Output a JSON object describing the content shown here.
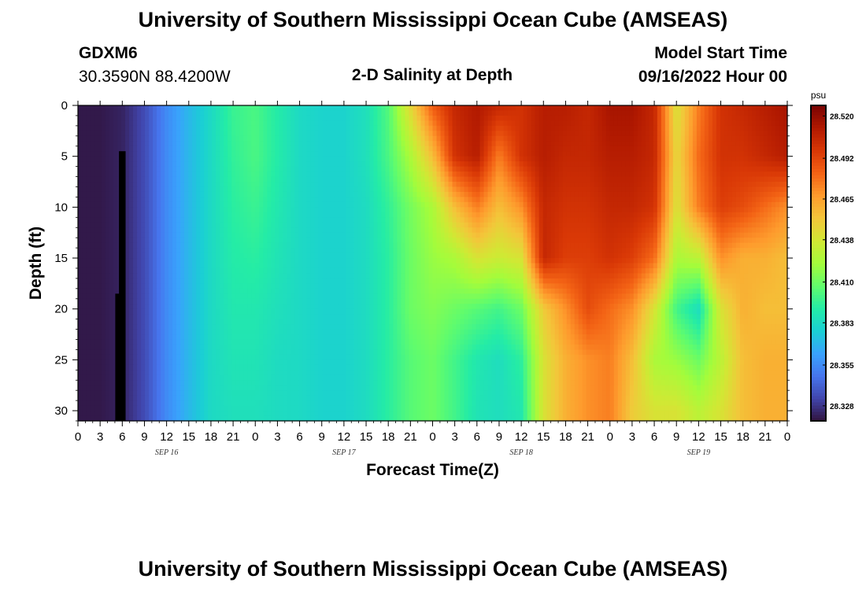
{
  "page": {
    "title": "University of Southern Mississippi Ocean Cube (AMSEAS)",
    "footer_title": "University of Southern Mississippi Ocean Cube (AMSEAS)",
    "station_id": "GDXM6",
    "coordinates": "30.3590N  88.4200W",
    "plot_title": "2-D Salinity at Depth",
    "model_start_label": "Model Start Time",
    "model_start_value": "09/16/2022 Hour 00"
  },
  "chart_data": {
    "type": "heatmap",
    "title": "2-D Salinity at Depth",
    "xlabel": "Forecast Time(Z)",
    "ylabel": "Depth (ft)",
    "x_unit": "hours since 09/16/2022 00Z",
    "xlim": [
      0,
      96
    ],
    "ylim": [
      0,
      31
    ],
    "y_inverted": true,
    "x_ticks": [
      0,
      3,
      6,
      9,
      12,
      15,
      18,
      21,
      24,
      27,
      30,
      33,
      36,
      39,
      42,
      45,
      48,
      51,
      54,
      57,
      60,
      63,
      66,
      69,
      72,
      75,
      78,
      81,
      84,
      87,
      90,
      93,
      96
    ],
    "x_tick_labels": [
      "0",
      "3",
      "6",
      "9",
      "12",
      "15",
      "18",
      "21",
      "0",
      "3",
      "6",
      "9",
      "12",
      "15",
      "18",
      "21",
      "0",
      "3",
      "6",
      "9",
      "12",
      "15",
      "18",
      "21",
      "0",
      "3",
      "6",
      "9",
      "12",
      "15",
      "18",
      "21",
      "0"
    ],
    "date_labels": [
      {
        "x": 12,
        "label": "SEP 16"
      },
      {
        "x": 36,
        "label": "SEP 17"
      },
      {
        "x": 60,
        "label": "SEP 18"
      },
      {
        "x": 84,
        "label": "SEP 19"
      }
    ],
    "y_ticks": [
      0,
      5,
      10,
      15,
      20,
      25,
      30
    ],
    "y_tick_labels": [
      "0",
      "5",
      "10",
      "15",
      "20",
      "25",
      "30"
    ],
    "colorbar": {
      "unit": "psu",
      "range": [
        28.318,
        28.527
      ],
      "tick_values": [
        28.52,
        28.492,
        28.465,
        28.438,
        28.41,
        28.383,
        28.355,
        28.328
      ],
      "tick_labels": [
        "28.520",
        "28.492",
        "28.465",
        "28.438",
        "28.410",
        "28.383",
        "28.355",
        "28.328"
      ],
      "colormap": [
        "#30123b",
        "#4145ab",
        "#4675ed",
        "#39a2fc",
        "#1bcfd4",
        "#24eca6",
        "#61fc6c",
        "#a4fc3b",
        "#d1e834",
        "#f3c63a",
        "#fe9b2d",
        "#f36315",
        "#d93806",
        "#b11901",
        "#7a0402"
      ]
    },
    "x_hours": [
      0,
      3,
      6,
      9,
      12,
      15,
      18,
      21,
      24,
      27,
      30,
      33,
      36,
      39,
      42,
      45,
      48,
      51,
      54,
      57,
      60,
      63,
      66,
      69,
      72,
      75,
      78,
      81,
      84,
      87,
      90,
      93,
      96
    ],
    "depths_ft": [
      0,
      5,
      10,
      15,
      20,
      25,
      30
    ],
    "values": [
      [
        28.32,
        28.32,
        28.323,
        28.335,
        28.355,
        28.37,
        28.383,
        28.398,
        28.402,
        28.392,
        28.383,
        28.38,
        28.38,
        28.386,
        28.404,
        28.445,
        28.485,
        28.505,
        28.512,
        28.505,
        28.5,
        28.51,
        28.51,
        28.505,
        28.515,
        28.515,
        28.505,
        28.44,
        28.475,
        28.5,
        28.505,
        28.51,
        28.515
      ],
      [
        28.32,
        28.32,
        28.323,
        28.335,
        28.355,
        28.37,
        28.383,
        28.396,
        28.402,
        28.392,
        28.383,
        28.38,
        28.38,
        28.386,
        28.402,
        28.425,
        28.455,
        28.5,
        28.51,
        28.475,
        28.5,
        28.51,
        28.505,
        28.505,
        28.51,
        28.51,
        28.505,
        28.445,
        28.48,
        28.5,
        28.5,
        28.505,
        28.51
      ],
      [
        28.32,
        28.32,
        28.323,
        28.335,
        28.355,
        28.37,
        28.383,
        28.394,
        28.398,
        28.39,
        28.383,
        28.38,
        28.38,
        28.384,
        28.396,
        28.412,
        28.425,
        28.455,
        28.475,
        28.455,
        28.47,
        28.505,
        28.5,
        28.5,
        28.505,
        28.505,
        28.5,
        28.44,
        28.475,
        28.495,
        28.49,
        28.48,
        28.47
      ],
      [
        28.32,
        28.32,
        28.323,
        28.335,
        28.355,
        28.37,
        28.383,
        28.392,
        28.394,
        28.388,
        28.383,
        28.38,
        28.38,
        28.384,
        28.394,
        28.41,
        28.42,
        28.425,
        28.44,
        28.435,
        28.44,
        28.505,
        28.495,
        28.495,
        28.5,
        28.495,
        28.48,
        28.425,
        28.43,
        28.47,
        28.46,
        28.46,
        28.455
      ],
      [
        28.32,
        28.32,
        28.323,
        28.335,
        28.355,
        28.37,
        28.383,
        28.39,
        28.39,
        28.386,
        28.383,
        28.38,
        28.38,
        28.384,
        28.394,
        28.41,
        28.415,
        28.41,
        28.405,
        28.4,
        28.41,
        28.45,
        28.47,
        28.49,
        28.48,
        28.47,
        28.44,
        28.4,
        28.385,
        28.44,
        28.46,
        28.455,
        28.455
      ],
      [
        28.32,
        28.32,
        28.323,
        28.335,
        28.355,
        28.37,
        28.383,
        28.388,
        28.388,
        28.384,
        28.383,
        28.38,
        28.38,
        28.384,
        28.394,
        28.405,
        28.41,
        28.4,
        28.39,
        28.385,
        28.395,
        28.44,
        28.46,
        28.47,
        28.475,
        28.455,
        28.425,
        28.42,
        28.41,
        28.43,
        28.455,
        28.46,
        28.46
      ],
      [
        28.32,
        28.32,
        28.323,
        28.335,
        28.355,
        28.37,
        28.383,
        28.386,
        28.386,
        28.384,
        28.383,
        28.38,
        28.38,
        28.384,
        28.394,
        28.405,
        28.41,
        28.4,
        28.388,
        28.385,
        28.39,
        28.44,
        28.46,
        28.47,
        28.475,
        28.45,
        28.44,
        28.44,
        28.43,
        28.44,
        28.455,
        28.46,
        28.46
      ]
    ],
    "masked_cells": [
      {
        "x": 6,
        "depth_from": 4.5,
        "depth_to": 31
      },
      {
        "x": 5.5,
        "depth_from": 18.5,
        "depth_to": 31
      }
    ]
  }
}
